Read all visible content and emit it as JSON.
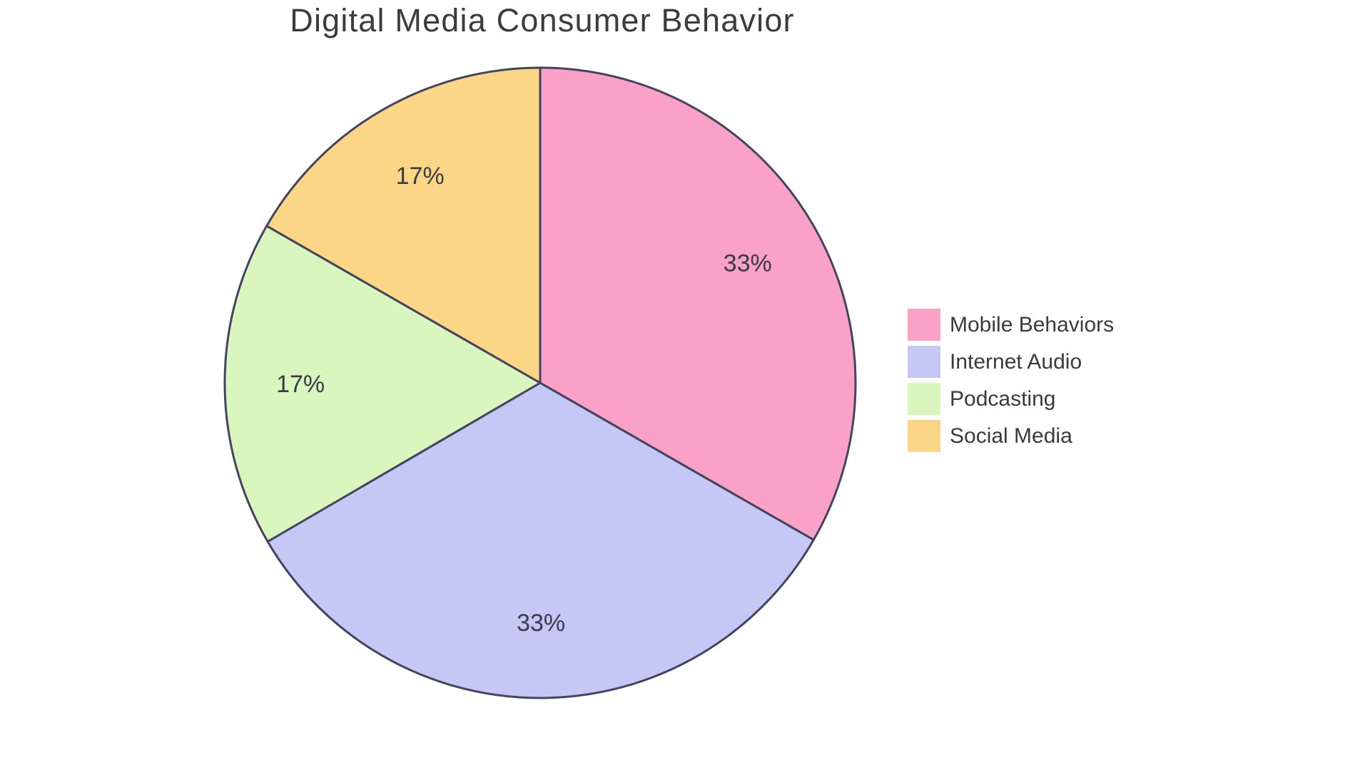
{
  "chart_data": {
    "type": "pie",
    "title": "Digital Media Consumer Behavior",
    "slices": [
      {
        "label": "Mobile Behaviors",
        "value": 33.3,
        "pct_label": "33%",
        "color": "#F9A1C6"
      },
      {
        "label": "Internet Audio",
        "value": 33.3,
        "pct_label": "33%",
        "color": "#C5C7F4"
      },
      {
        "label": "Podcasting",
        "value": 16.7,
        "pct_label": "17%",
        "color": "#D9F6BE"
      },
      {
        "label": "Social Media",
        "value": 16.7,
        "pct_label": "17%",
        "color": "#FBD687"
      }
    ],
    "start_angle": "top",
    "direction": "clockwise",
    "legend_position": "right",
    "colors": {
      "edge": "#454460",
      "pct_text": "#3A3A48",
      "title_text": "#3C3C3C",
      "legend_text": "#3A3A3A",
      "background": "#FFFFFF"
    }
  }
}
